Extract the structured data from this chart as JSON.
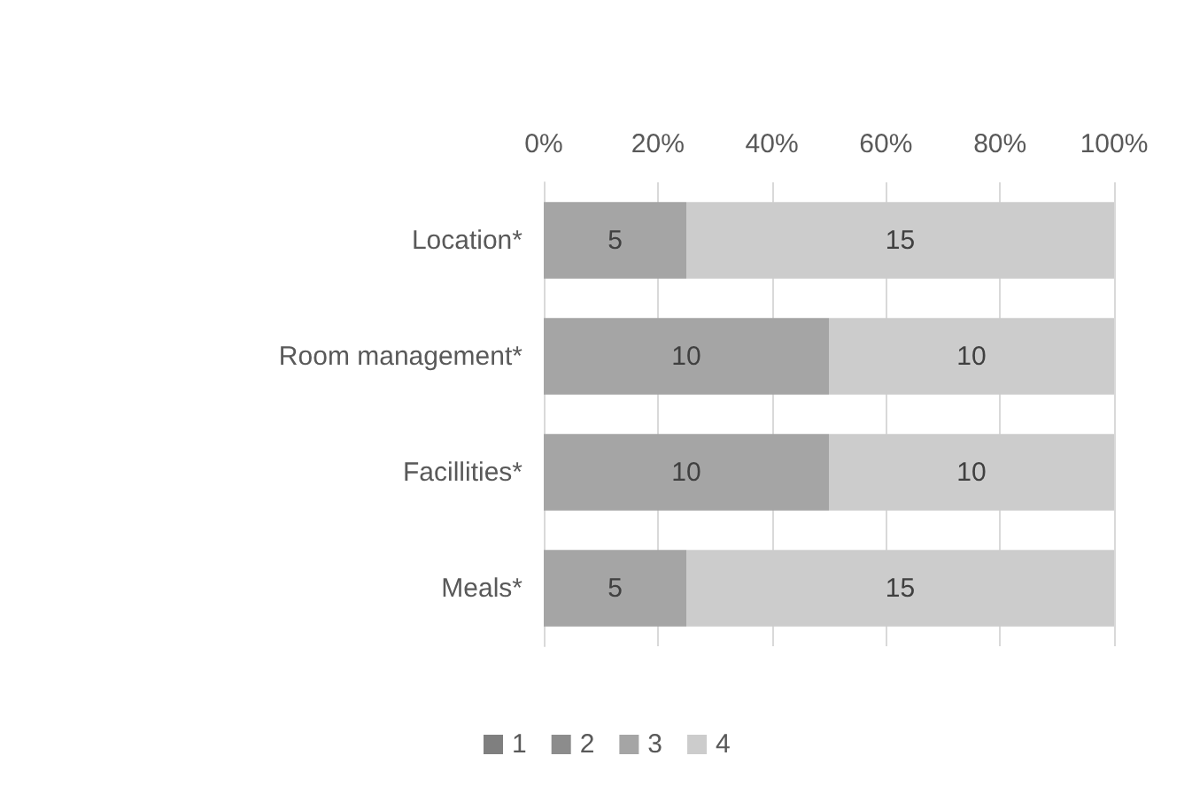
{
  "chart_data": {
    "type": "bar",
    "orientation": "horizontal",
    "stacked": true,
    "categories": [
      "Location*",
      "Room management*",
      "Facillities*",
      "Meals*"
    ],
    "series": [
      {
        "name": "1",
        "color": "#7f7f7f",
        "values": [
          null,
          null,
          null,
          null
        ]
      },
      {
        "name": "2",
        "color": "#8c8c8c",
        "values": [
          null,
          null,
          null,
          null
        ]
      },
      {
        "name": "3",
        "color": "#a5a5a5",
        "values": [
          25,
          50,
          50,
          25
        ]
      },
      {
        "name": "4",
        "color": "#cccccc",
        "values": [
          75,
          50,
          50,
          75
        ]
      }
    ],
    "annotations": [
      "5",
      "15",
      "10",
      "10",
      "10",
      "10",
      "5",
      "15"
    ],
    "xlim": [
      0,
      100
    ],
    "xticks": [
      {
        "value": 0,
        "label": "0%"
      },
      {
        "value": 20,
        "label": "20%"
      },
      {
        "value": 40,
        "label": "40%"
      },
      {
        "value": 60,
        "label": "60%"
      },
      {
        "value": 80,
        "label": "80%"
      },
      {
        "value": 100,
        "label": "100%"
      }
    ],
    "grid": "x",
    "legend": "bottom"
  }
}
